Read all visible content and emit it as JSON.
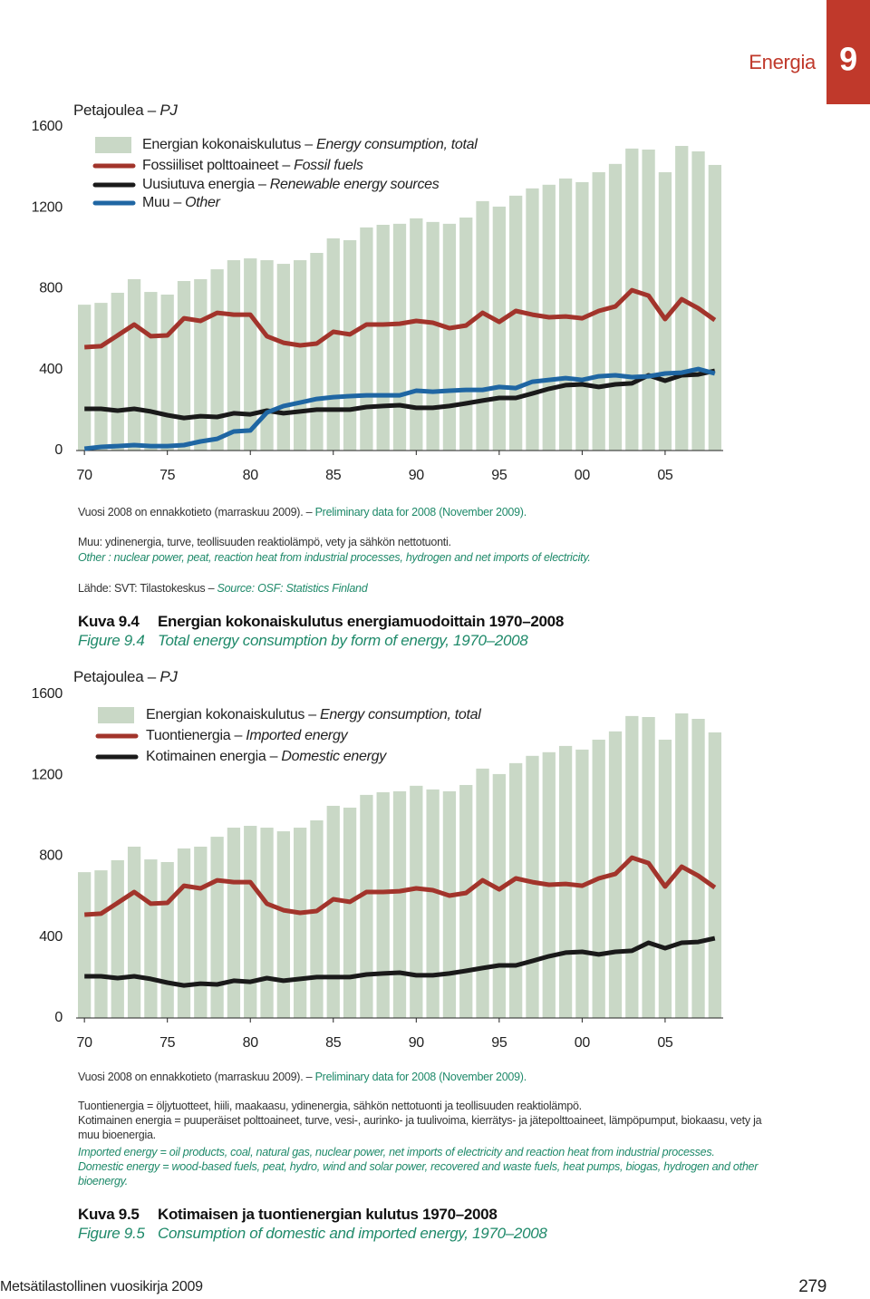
{
  "header": {
    "section": "Energia",
    "chapter": "9"
  },
  "chart_data": [
    {
      "type": "combo",
      "y_label": "Petajoulea – PJ",
      "x": [
        1970,
        1971,
        1972,
        1973,
        1974,
        1975,
        1976,
        1977,
        1978,
        1979,
        1980,
        1981,
        1982,
        1983,
        1984,
        1985,
        1986,
        1987,
        1988,
        1989,
        1990,
        1991,
        1992,
        1993,
        1994,
        1995,
        1996,
        1997,
        1998,
        1999,
        2000,
        2001,
        2002,
        2003,
        2004,
        2005,
        2006,
        2007,
        2008
      ],
      "xlim": [
        1969.5,
        2008.5
      ],
      "xticks": [
        {
          "value": 1970,
          "label": "70"
        },
        {
          "value": 1975,
          "label": "75"
        },
        {
          "value": 1980,
          "label": "80"
        },
        {
          "value": 1985,
          "label": "85"
        },
        {
          "value": 1990,
          "label": "90"
        },
        {
          "value": 1995,
          "label": "95"
        },
        {
          "value": 2000,
          "label": "00"
        },
        {
          "value": 2005,
          "label": "05"
        }
      ],
      "ylim": [
        0,
        1600
      ],
      "yticks": [
        0,
        400,
        800,
        1200,
        1600
      ],
      "series": [
        {
          "name": "Energian kokonaiskulutus – Energy consumption, total",
          "type": "bar",
          "color": "#c9d8c6",
          "values": [
            721,
            730,
            780,
            847,
            784,
            771,
            838,
            847,
            896,
            941,
            950,
            941,
            923,
            941,
            977,
            1049,
            1040,
            1103,
            1116,
            1121,
            1148,
            1130,
            1121,
            1152,
            1233,
            1206,
            1260,
            1296,
            1314,
            1345,
            1327,
            1376,
            1417,
            1493,
            1488,
            1376,
            1506,
            1479,
            1412
          ]
        },
        {
          "name": "Fossiiliset polttoaineet – Fossil fuels",
          "type": "line",
          "color": "#a2342b",
          "values": [
            511,
            516,
            569,
            623,
            565,
            569,
            654,
            641,
            681,
            672,
            672,
            565,
            533,
            520,
            529,
            587,
            574,
            623,
            623,
            627,
            641,
            632,
            605,
            618,
            681,
            636,
            690,
            672,
            659,
            663,
            654,
            690,
            712,
            793,
            766,
            650,
            748,
            703,
            645
          ]
        },
        {
          "name": "Uusiutuva energia – Renewable energy sources",
          "type": "line",
          "color": "#1a1a1a",
          "values": [
            206,
            206,
            197,
            206,
            193,
            175,
            161,
            170,
            166,
            184,
            179,
            197,
            184,
            193,
            202,
            202,
            202,
            215,
            220,
            224,
            211,
            211,
            220,
            233,
            247,
            260,
            260,
            282,
            305,
            323,
            327,
            314,
            327,
            332,
            372,
            345,
            372,
            376,
            394
          ]
        },
        {
          "name": "Muu – Other",
          "type": "line",
          "color": "#1f66a3",
          "values": [
            9,
            18,
            22,
            27,
            22,
            22,
            27,
            45,
            58,
            94,
            99,
            188,
            220,
            237,
            255,
            264,
            269,
            273,
            273,
            273,
            296,
            291,
            296,
            300,
            300,
            314,
            309,
            340,
            349,
            358,
            349,
            367,
            372,
            363,
            367,
            381,
            385,
            403,
            381
          ]
        }
      ]
    },
    {
      "type": "combo",
      "y_label": "Petajoulea – PJ",
      "x": [
        1970,
        1971,
        1972,
        1973,
        1974,
        1975,
        1976,
        1977,
        1978,
        1979,
        1980,
        1981,
        1982,
        1983,
        1984,
        1985,
        1986,
        1987,
        1988,
        1989,
        1990,
        1991,
        1992,
        1993,
        1994,
        1995,
        1996,
        1997,
        1998,
        1999,
        2000,
        2001,
        2002,
        2003,
        2004,
        2005,
        2006,
        2007,
        2008
      ],
      "xlim": [
        1969.5,
        2008.5
      ],
      "xticks": [
        {
          "value": 1970,
          "label": "70"
        },
        {
          "value": 1975,
          "label": "75"
        },
        {
          "value": 1980,
          "label": "80"
        },
        {
          "value": 1985,
          "label": "85"
        },
        {
          "value": 1990,
          "label": "90"
        },
        {
          "value": 1995,
          "label": "95"
        },
        {
          "value": 2000,
          "label": "00"
        },
        {
          "value": 2005,
          "label": "05"
        }
      ],
      "ylim": [
        0,
        1600
      ],
      "yticks": [
        0,
        400,
        800,
        1200,
        1600
      ],
      "series": [
        {
          "name": "Energian kokonaiskulutus – Energy consumption, total",
          "type": "bar",
          "color": "#c9d8c6",
          "values": [
            721,
            730,
            780,
            847,
            784,
            771,
            838,
            847,
            896,
            941,
            950,
            941,
            923,
            941,
            977,
            1049,
            1040,
            1103,
            1116,
            1121,
            1148,
            1130,
            1121,
            1152,
            1233,
            1206,
            1260,
            1296,
            1314,
            1345,
            1327,
            1376,
            1417,
            1493,
            1488,
            1376,
            1506,
            1479,
            1412
          ]
        },
        {
          "name": "Tuontienergia – Imported energy",
          "type": "line",
          "color": "#a2342b",
          "values": [
            511,
            516,
            569,
            623,
            565,
            569,
            654,
            641,
            681,
            672,
            672,
            565,
            533,
            520,
            529,
            587,
            574,
            623,
            623,
            627,
            641,
            632,
            605,
            618,
            681,
            636,
            690,
            672,
            659,
            663,
            654,
            690,
            712,
            793,
            766,
            650,
            748,
            703,
            645
          ]
        },
        {
          "name": "Kotimainen energia – Domestic energy",
          "type": "line",
          "color": "#1a1a1a",
          "values": [
            206,
            206,
            197,
            206,
            193,
            175,
            161,
            170,
            166,
            184,
            179,
            197,
            184,
            193,
            202,
            202,
            202,
            215,
            220,
            224,
            211,
            211,
            220,
            233,
            247,
            260,
            260,
            282,
            305,
            323,
            327,
            314,
            327,
            332,
            372,
            345,
            372,
            376,
            394
          ]
        }
      ]
    }
  ],
  "figures": [
    {
      "notes": {
        "preliminary_fi": "Vuosi 2008 on ennakkotieto (marraskuu 2009). –",
        "preliminary_en": "Preliminary data for 2008 (November 2009).",
        "other_fi": "Muu: ydinenergia, turve, teollisuuden reaktiolämpö, vety ja sähkön nettotuonti.",
        "other_en": "Other : nuclear power, peat, reaction heat from industrial processes, hydrogen and net imports of electricity.",
        "source_fi": "Lähde: SVT: Tilastokeskus –",
        "source_en": "Source: OSF: Statistics Finland"
      },
      "caption": {
        "label_fi": "Kuva 9.4",
        "title_fi": "Energian kokonaiskulutus energiamuodoittain 1970–2008",
        "label_en": "Figure 9.4",
        "title_en": "Total energy consumption by form of energy, 1970–2008"
      }
    },
    {
      "notes": {
        "preliminary_fi": "Vuosi 2008 on ennakkotieto (marraskuu 2009). –",
        "preliminary_en": "Preliminary data for 2008 (November 2009).",
        "imported_fi": "Tuontienergia = öljytuotteet, hiili, maakaasu, ydinenergia, sähkön nettotuonti ja teollisuuden reaktiolämpö.",
        "domestic_fi": "Kotimainen energia = puuperäiset polttoaineet, turve, vesi-, aurinko- ja tuulivoima, kierrätys- ja jätepolttoaineet, lämpöpumput, biokaasu, vety ja muu bioenergia.",
        "imported_en": "Imported energy = oil products, coal, natural gas, nuclear power, net imports of electricity and reaction heat from industrial processes.",
        "domestic_en": "Domestic energy = wood-based fuels, peat, hydro, wind and solar power, recovered and waste fuels, heat pumps, biogas, hydrogen and other bioenergy."
      },
      "caption": {
        "label_fi": "Kuva 9.5",
        "title_fi": "Kotimaisen ja tuontienergian kulutus 1970–2008",
        "label_en": "Figure 9.5",
        "title_en": "Consumption of domestic and imported energy, 1970–2008"
      }
    }
  ],
  "footer": {
    "publication": "Metsätilastollinen vuosikirja 2009",
    "page": "279"
  }
}
